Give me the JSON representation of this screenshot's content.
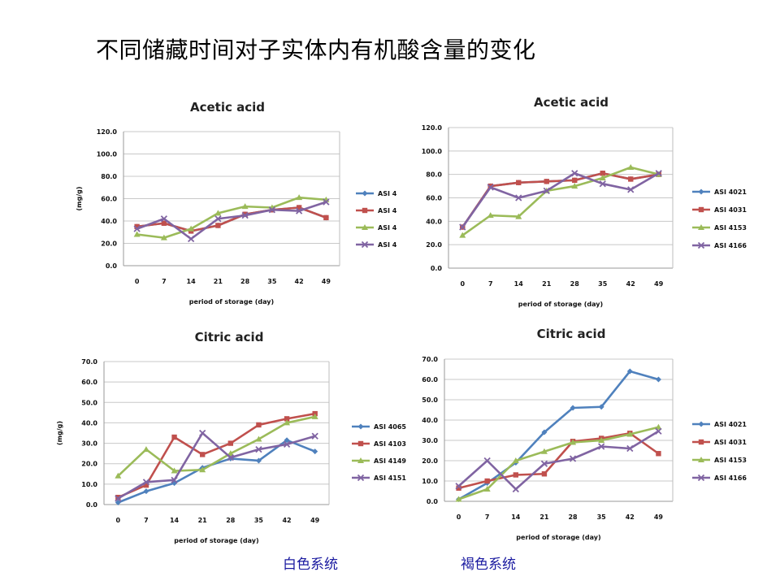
{
  "page": {
    "title": "不同储藏时间对子实体内有机酸含量的变化",
    "footer_left": "白色系统",
    "footer_right": "褐色系统"
  },
  "colors": {
    "s1": "#4f81bd",
    "s2": "#c0504d",
    "s3": "#9bbb59",
    "s4": "#8064a2",
    "grid": "#c8c8c8",
    "footer": "#1a1aa0"
  },
  "chart_data": [
    {
      "type": "line",
      "title": "Acetic acid",
      "xlabel": "period of storage (day)",
      "ylabel": "(mg/g)",
      "x": [
        0,
        7,
        14,
        21,
        28,
        35,
        42,
        49
      ],
      "ylim": [
        0,
        120
      ],
      "yticks": [
        "0.0",
        "20.0",
        "40.0",
        "60.0",
        "80.0",
        "100.0",
        "120.0"
      ],
      "grid": true,
      "legend_position": "right",
      "series": [
        {
          "name": "ASI 4",
          "values": [
            35,
            38,
            31,
            36,
            46,
            50,
            52,
            43
          ]
        },
        {
          "name": "ASI 4",
          "values": [
            35,
            38,
            31,
            36,
            46,
            50,
            52,
            43
          ]
        },
        {
          "name": "ASI 4",
          "values": [
            28,
            25,
            33,
            47,
            53,
            52,
            61,
            59
          ]
        },
        {
          "name": "ASI 4",
          "values": [
            33,
            42,
            24,
            42,
            45,
            50,
            49,
            57
          ]
        }
      ]
    },
    {
      "type": "line",
      "title": "Acetic acid",
      "xlabel": "period of storage (day)",
      "ylabel": "",
      "x": [
        0,
        7,
        14,
        21,
        28,
        35,
        42,
        49
      ],
      "ylim": [
        0,
        120
      ],
      "yticks": [
        "0.0",
        "20.0",
        "40.0",
        "60.0",
        "80.0",
        "100.0",
        "120.0"
      ],
      "grid": true,
      "legend_position": "right",
      "series": [
        {
          "name": "ASI 4021",
          "values": [
            35,
            70,
            73,
            74,
            75,
            81,
            76,
            80
          ]
        },
        {
          "name": "ASI 4031",
          "values": [
            35,
            70,
            73,
            74,
            75,
            81,
            76,
            80
          ]
        },
        {
          "name": "ASI 4153",
          "values": [
            28,
            45,
            44,
            66,
            70,
            77,
            86,
            80
          ]
        },
        {
          "name": "ASI 4166",
          "values": [
            35,
            69,
            60,
            66,
            81,
            72,
            67,
            81
          ]
        }
      ]
    },
    {
      "type": "line",
      "title": "Citric acid",
      "xlabel": "period of storage (day)",
      "ylabel": "(mg/g)",
      "x": [
        0,
        7,
        14,
        21,
        28,
        35,
        42,
        49
      ],
      "ylim": [
        0,
        70
      ],
      "yticks": [
        "0.0",
        "10.0",
        "20.0",
        "30.0",
        "40.0",
        "50.0",
        "60.0",
        "70.0"
      ],
      "grid": true,
      "legend_position": "right",
      "series": [
        {
          "name": "ASI 4065",
          "values": [
            1,
            6.5,
            10.5,
            18,
            22.5,
            21.5,
            31.5,
            26
          ]
        },
        {
          "name": "ASI 4103",
          "values": [
            3.5,
            9.5,
            33,
            24.5,
            30,
            39,
            42,
            44.5
          ]
        },
        {
          "name": "ASI 4149",
          "values": [
            14,
            27,
            16.5,
            17,
            25,
            32,
            40,
            43
          ]
        },
        {
          "name": "ASI 4151",
          "values": [
            3,
            11,
            12,
            35,
            23,
            27,
            29.5,
            33.5
          ]
        }
      ]
    },
    {
      "type": "line",
      "title": "Citric acid",
      "xlabel": "period of storage (day)",
      "ylabel": "",
      "x": [
        0,
        7,
        14,
        21,
        28,
        35,
        42,
        49
      ],
      "ylim": [
        0,
        70
      ],
      "yticks": [
        "0.0",
        "10.0",
        "20.0",
        "30.0",
        "40.0",
        "50.0",
        "60.0",
        "70.0"
      ],
      "grid": true,
      "legend_position": "right",
      "series": [
        {
          "name": "ASI 4021",
          "values": [
            1,
            9,
            19,
            34,
            46,
            46.5,
            64,
            60
          ]
        },
        {
          "name": "ASI 4031",
          "values": [
            6.5,
            10,
            13,
            13.5,
            29.5,
            31,
            33.5,
            23.5
          ]
        },
        {
          "name": "ASI 4153",
          "values": [
            1,
            6,
            20,
            24.5,
            29,
            30,
            33,
            36.5
          ]
        },
        {
          "name": "ASI 4166",
          "values": [
            7.5,
            20,
            6,
            18.5,
            21,
            27,
            26,
            34.5
          ]
        }
      ]
    }
  ]
}
